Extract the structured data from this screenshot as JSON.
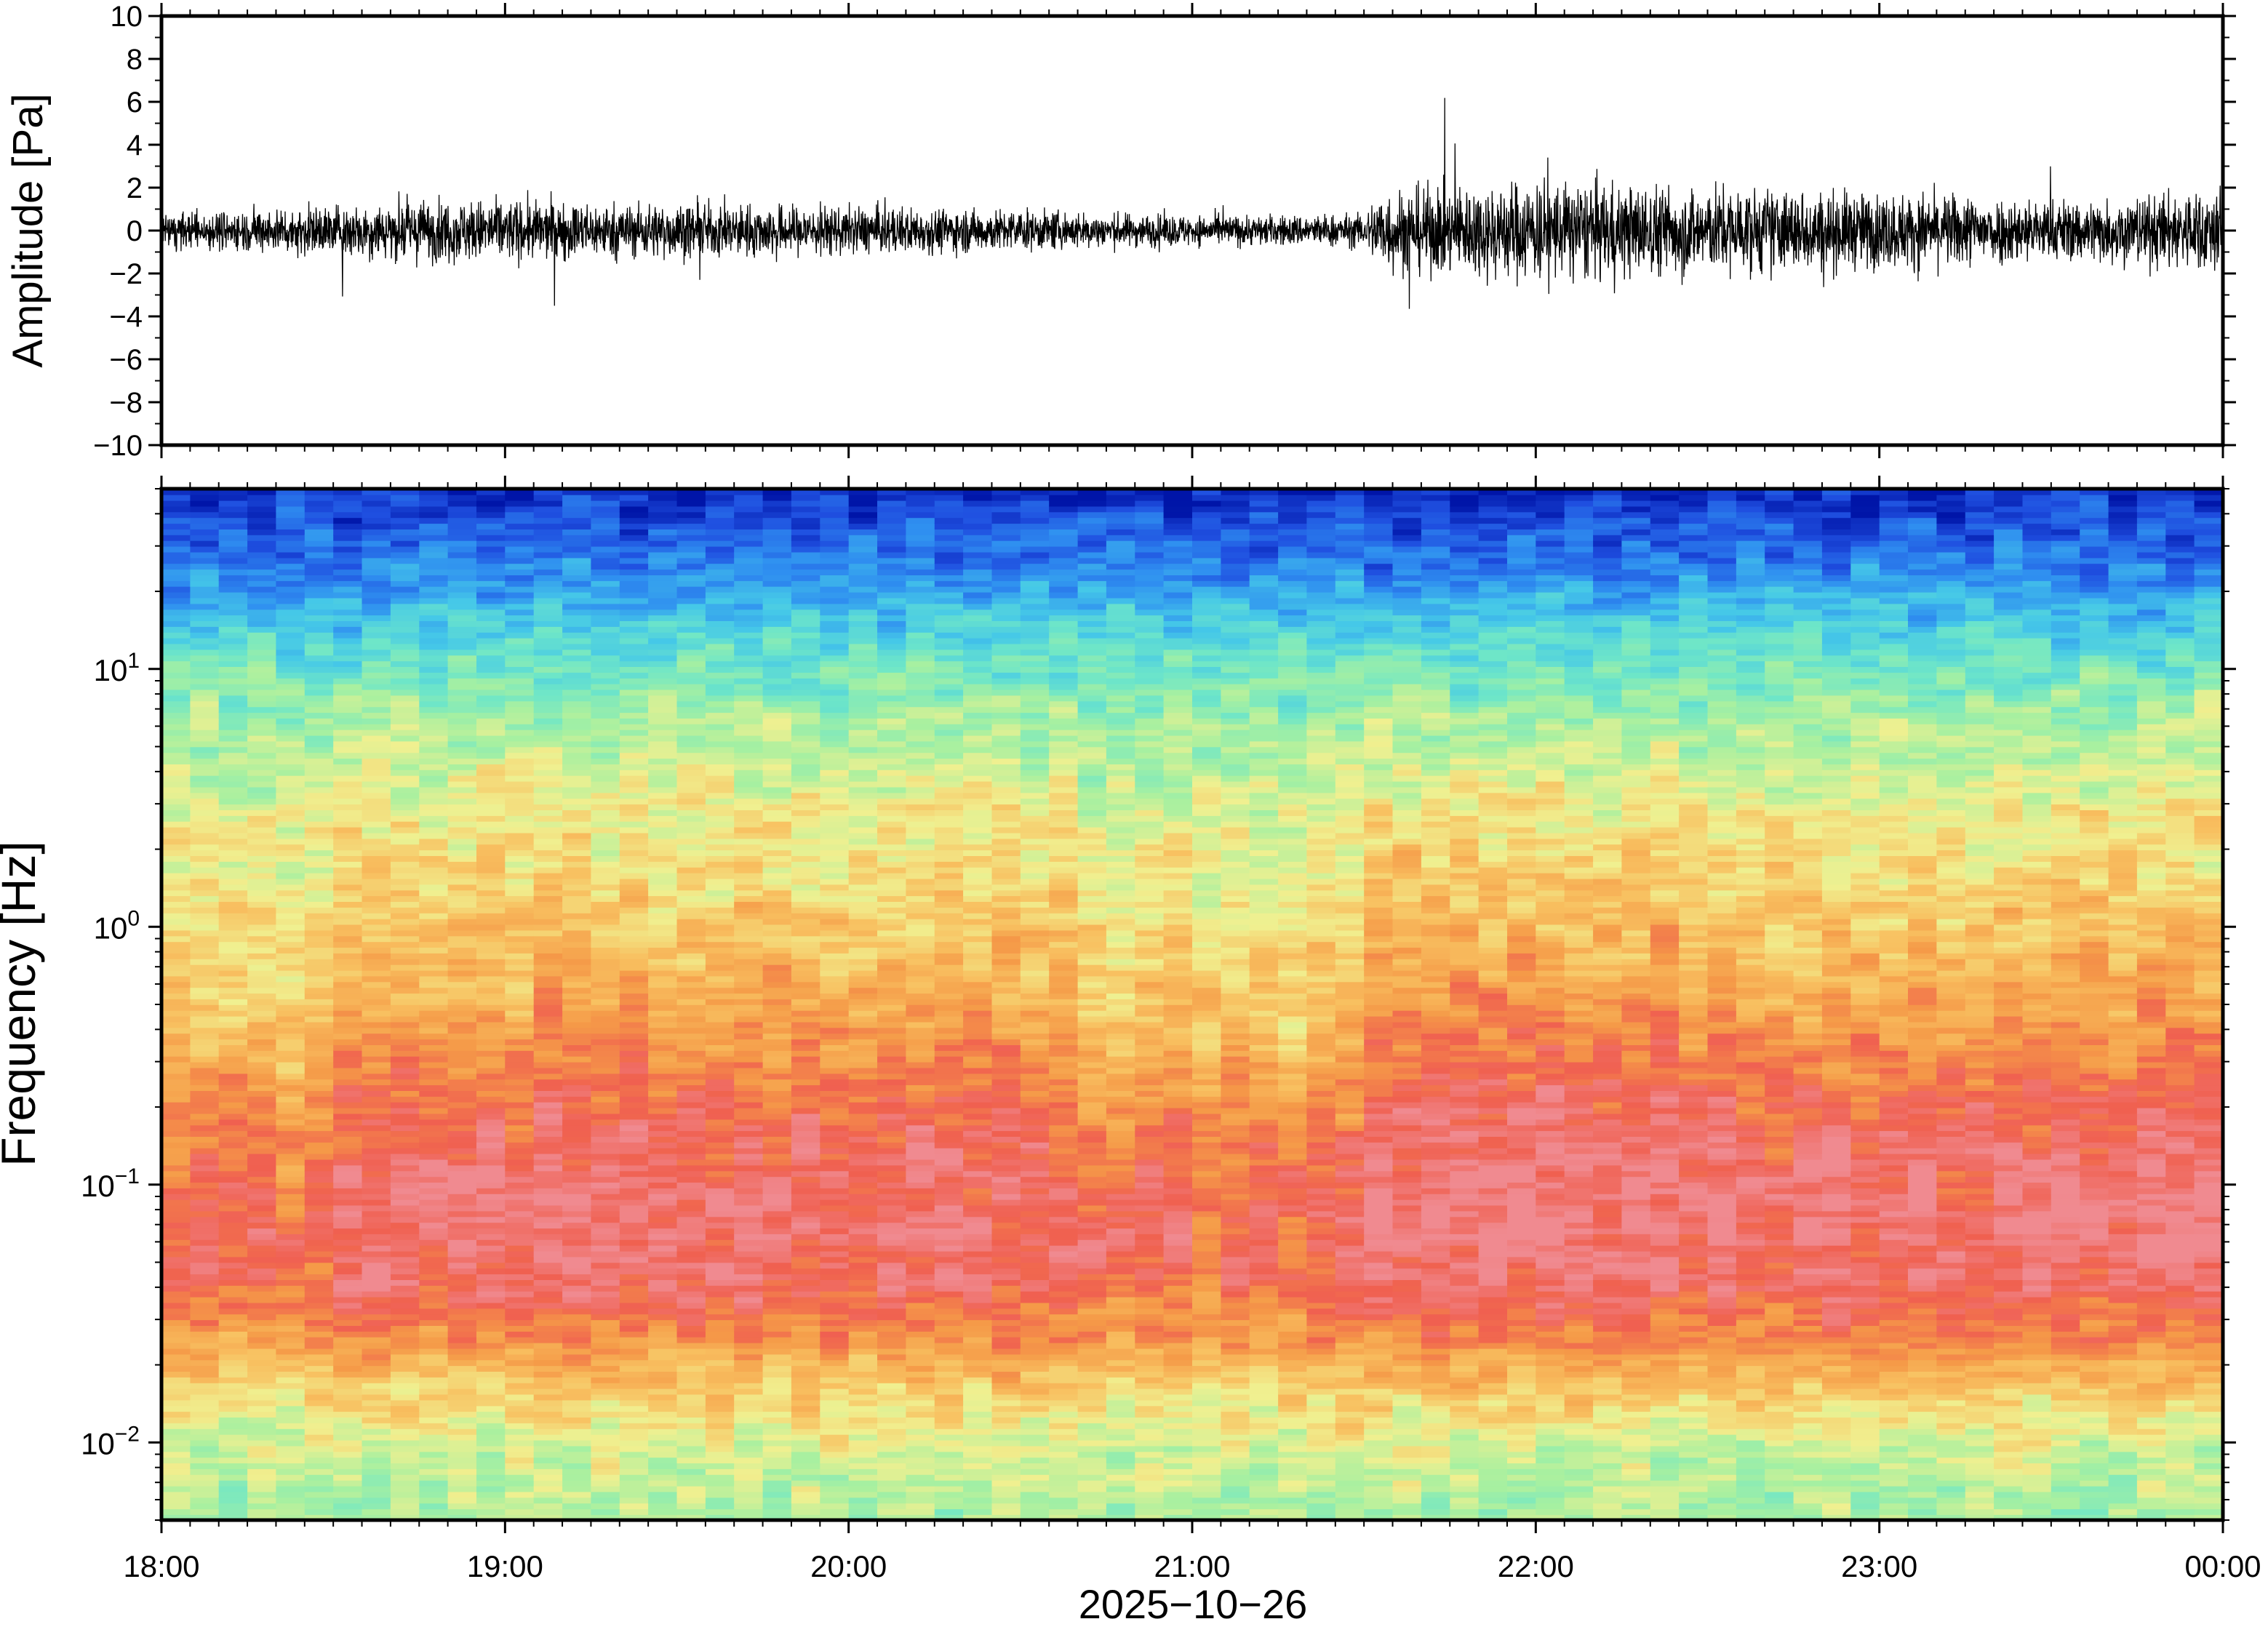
{
  "chart_data": [
    {
      "type": "line",
      "title": "",
      "xlabel": "",
      "ylabel": "Amplitude [Pa]",
      "ylim": [
        -10,
        10
      ],
      "yticks": [
        {
          "value": 10,
          "label": "10"
        },
        {
          "value": 8,
          "label": "8"
        },
        {
          "value": 6,
          "label": "6"
        },
        {
          "value": 4,
          "label": "4"
        },
        {
          "value": 2,
          "label": "2"
        },
        {
          "value": 0,
          "label": "0"
        },
        {
          "value": -2,
          "label": "−2"
        },
        {
          "value": -4,
          "label": "−4"
        },
        {
          "value": -6,
          "label": "−6"
        },
        {
          "value": -8,
          "label": "−8"
        },
        {
          "value": -10,
          "label": "−10"
        }
      ],
      "grid": false,
      "series": [
        {
          "x_hours": [
            18.0,
            18.25,
            18.5,
            18.75,
            19.0,
            19.25,
            19.5,
            19.75,
            20.0,
            20.25,
            20.5,
            20.75,
            21.0,
            21.25,
            21.5,
            21.55,
            21.75,
            22.0,
            22.25,
            22.5,
            22.75,
            23.0,
            23.25,
            23.5,
            23.75,
            24.0
          ],
          "envelope": [
            1.0,
            1.2,
            1.5,
            1.8,
            1.8,
            1.6,
            1.6,
            1.5,
            1.4,
            1.3,
            1.2,
            1.0,
            0.9,
            0.9,
            1.0,
            2.4,
            2.6,
            3.0,
            2.7,
            2.6,
            2.4,
            2.2,
            2.1,
            1.8,
            2.0,
            2.6
          ],
          "color": "#000000"
        }
      ]
    },
    {
      "type": "heatmap",
      "title": "",
      "ylabel": "Frequency [Hz]",
      "yscale": "log",
      "ylim": [
        0.005,
        50
      ],
      "yticks": [
        {
          "value": 10,
          "base": "10",
          "exp": "1"
        },
        {
          "value": 1,
          "base": "10",
          "exp": "0"
        },
        {
          "value": 0.1,
          "base": "10",
          "exp": "−1"
        },
        {
          "value": 0.01,
          "base": "10",
          "exp": "−2"
        }
      ],
      "colormap": [
        "#0015a8",
        "#1f4fe0",
        "#2f8ff0",
        "#45c8e8",
        "#6ee6c8",
        "#a8f0a0",
        "#f0f090",
        "#f8c060",
        "#f59a48",
        "#f06050",
        "#f08a90"
      ],
      "description_levels": "low=blue, high=red/pink"
    }
  ],
  "xaxis": {
    "label": "2025−10−26",
    "range_hours": [
      18,
      24
    ],
    "ticks": [
      {
        "value": 18,
        "label": "18:00"
      },
      {
        "value": 19,
        "label": "19:00"
      },
      {
        "value": 20,
        "label": "20:00"
      },
      {
        "value": 21,
        "label": "21:00"
      },
      {
        "value": 22,
        "label": "22:00"
      },
      {
        "value": 23,
        "label": "23:00"
      },
      {
        "value": 24,
        "label": "00:00"
      }
    ]
  }
}
